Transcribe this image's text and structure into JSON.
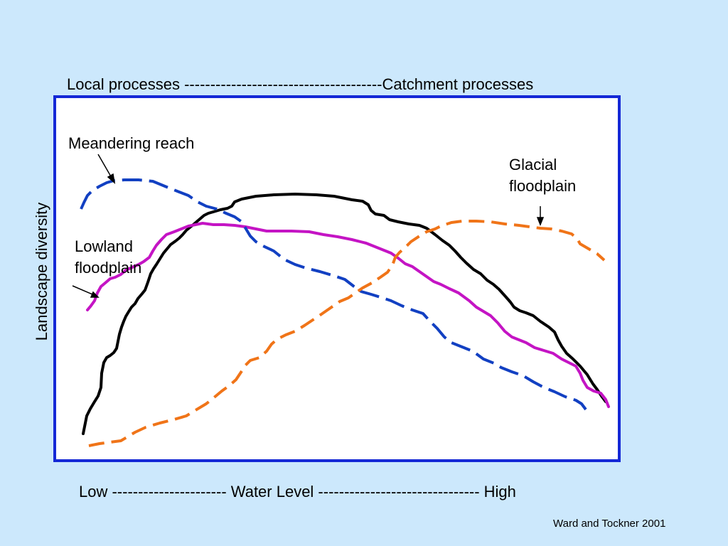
{
  "header": {
    "text": "Local processes --------------------------------------Catchment processes"
  },
  "footer": {
    "axis_text": "Low ---------------------- Water Level  -------------------------------  High",
    "credit": "Ward and Tockner 2001"
  },
  "y_axis": {
    "label": "Landscape diversity"
  },
  "annotations": {
    "meandering": "Meandering reach",
    "lowland_line1": "Lowland",
    "lowland_line2": "floodplain",
    "glacial_line1": "Glacial",
    "glacial_line2": "floodplain"
  },
  "colors": {
    "background": "#cce8fc",
    "frame": "#1428d6",
    "meandering": "#1240c2",
    "lowland": "#c414c4",
    "glacial": "#f07418",
    "unlabeled": "#000000"
  }
}
